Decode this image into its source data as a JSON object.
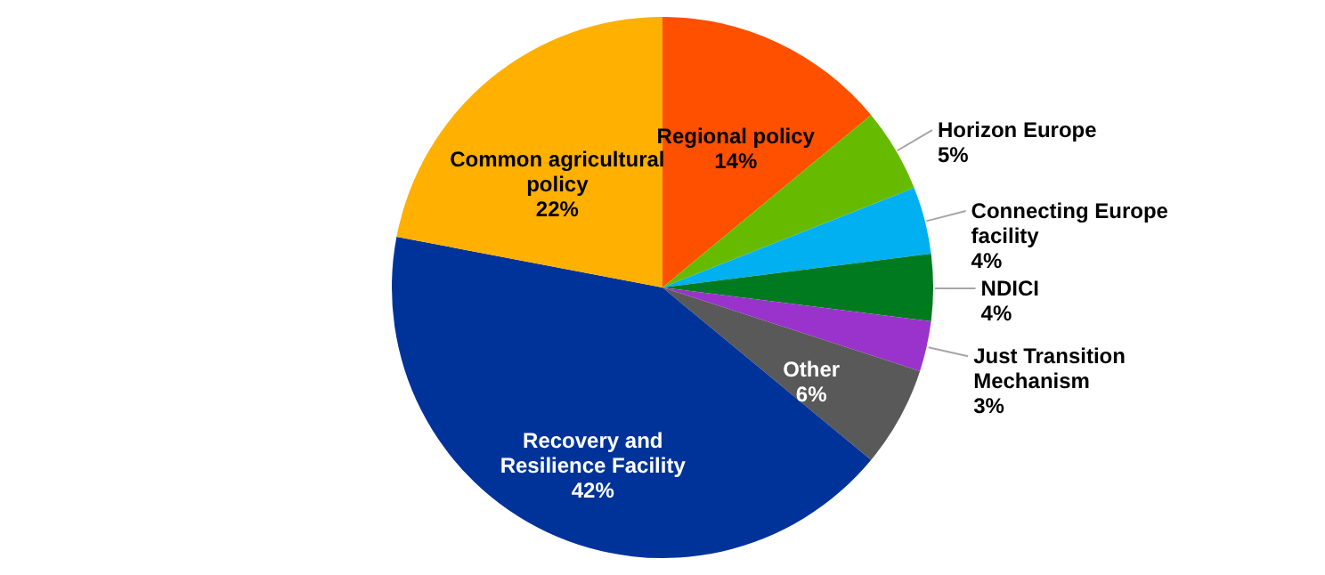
{
  "chart_data": {
    "type": "pie",
    "categories": [
      "Regional policy",
      "Horizon Europe",
      "Connecting Europe facility",
      "NDICI",
      "Just Transition Mechanism",
      "Other",
      "Recovery and Resilience Facility",
      "Common agricultural policy"
    ],
    "values": [
      14,
      5,
      4,
      4,
      3,
      6,
      42,
      22
    ],
    "value_labels": [
      "14%",
      "5%",
      "4%",
      "4%",
      "3%",
      "6%",
      "42%",
      "22%"
    ],
    "colors": [
      "#ff5000",
      "#66bb00",
      "#00b0f0",
      "#007a1e",
      "#9933cc",
      "#595959",
      "#003399",
      "#ffb000"
    ]
  }
}
